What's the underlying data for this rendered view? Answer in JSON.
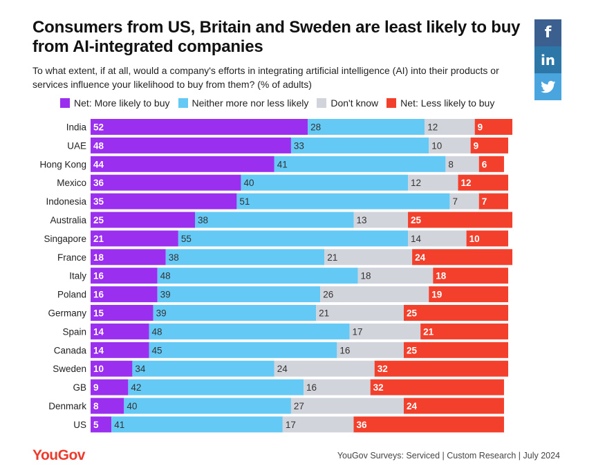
{
  "title": "Consumers from US, Britain and Sweden are least likely to buy from AI-integrated companies",
  "subtitle": "To what extent, if at all, would a company's efforts in integrating artificial intelligence (AI) into their products or services influence your likelihood to buy from them? (% of adults)",
  "social": {
    "facebook_icon": "facebook-icon",
    "linkedin_icon": "linkedin-icon",
    "twitter_icon": "twitter-icon",
    "facebook_glyph": "f",
    "linkedin_glyph": "in"
  },
  "footer": {
    "logo": "YouGov",
    "source": "YouGov Surveys: Serviced | Custom Research | July 2024"
  },
  "chart_data": {
    "type": "bar",
    "orientation": "horizontal",
    "stacked": true,
    "legend_position": "top",
    "categories": [
      "India",
      "UAE",
      "Hong Kong",
      "Mexico",
      "Indonesia",
      "Australia",
      "Singapore",
      "France",
      "Italy",
      "Poland",
      "Germany",
      "Spain",
      "Canada",
      "Sweden",
      "GB",
      "Denmark",
      "US"
    ],
    "series": [
      {
        "name": "Net: More likely to buy",
        "color": "#9b2ff0",
        "label_color": "#ffffff",
        "bold": true,
        "values": [
          52,
          48,
          44,
          36,
          35,
          25,
          21,
          18,
          16,
          16,
          15,
          14,
          14,
          10,
          9,
          8,
          5
        ]
      },
      {
        "name": "Neither more nor less likely",
        "color": "#65c9f6",
        "label_color": "#333333",
        "bold": false,
        "values": [
          28,
          33,
          41,
          40,
          51,
          38,
          55,
          38,
          48,
          39,
          39,
          48,
          45,
          34,
          42,
          40,
          41
        ]
      },
      {
        "name": "Don't know",
        "color": "#d2d4dc",
        "label_color": "#333333",
        "bold": false,
        "values": [
          12,
          10,
          8,
          12,
          7,
          13,
          14,
          21,
          18,
          26,
          21,
          17,
          16,
          24,
          16,
          27,
          17
        ]
      },
      {
        "name": "Net: Less likely to buy",
        "color": "#f3402d",
        "label_color": "#ffffff",
        "bold": true,
        "values": [
          9,
          9,
          6,
          12,
          7,
          25,
          10,
          24,
          18,
          19,
          25,
          21,
          25,
          32,
          32,
          24,
          36
        ]
      }
    ],
    "xlim": [
      0,
      100
    ],
    "unit": "% of adults",
    "grid": false
  }
}
